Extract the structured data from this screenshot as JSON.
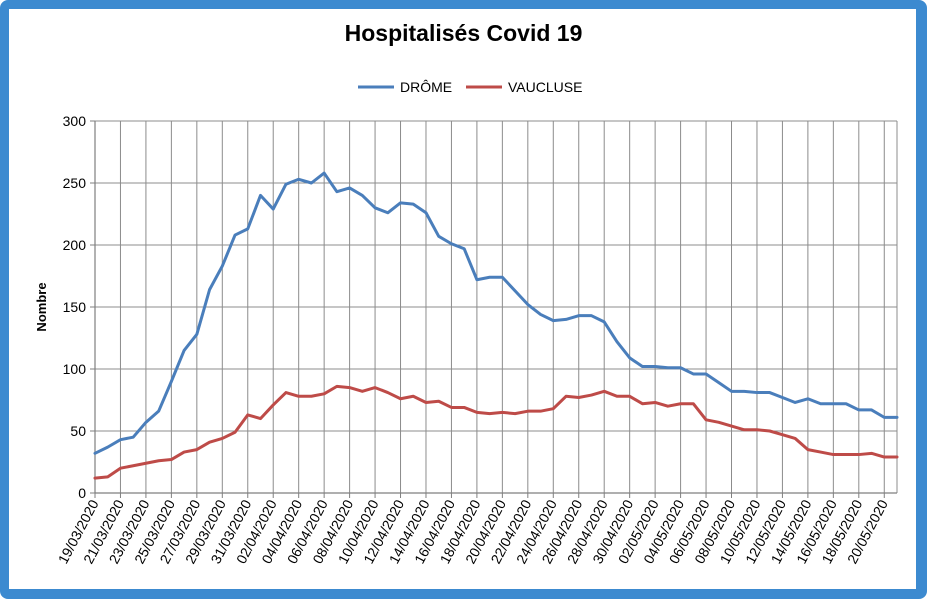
{
  "chart_data": {
    "type": "line",
    "title": "Hospitalisés Covid 19",
    "xlabel": "",
    "ylabel": "Nombre",
    "ylim": [
      0,
      300
    ],
    "yticks": [
      0,
      50,
      100,
      150,
      200,
      250,
      300
    ],
    "grid": true,
    "legend_position": "top",
    "x": [
      "19/03/2020",
      "20/03/2020",
      "21/03/2020",
      "22/03/2020",
      "23/03/2020",
      "24/03/2020",
      "25/03/2020",
      "26/03/2020",
      "27/03/2020",
      "28/03/2020",
      "29/03/2020",
      "30/03/2020",
      "31/03/2020",
      "01/04/2020",
      "02/04/2020",
      "03/04/2020",
      "04/04/2020",
      "05/04/2020",
      "06/04/2020",
      "07/04/2020",
      "08/04/2020",
      "09/04/2020",
      "10/04/2020",
      "11/04/2020",
      "12/04/2020",
      "13/04/2020",
      "14/04/2020",
      "15/04/2020",
      "16/04/2020",
      "17/04/2020",
      "18/04/2020",
      "19/04/2020",
      "20/04/2020",
      "21/04/2020",
      "22/04/2020",
      "23/04/2020",
      "24/04/2020",
      "25/04/2020",
      "26/04/2020",
      "27/04/2020",
      "28/04/2020",
      "29/04/2020",
      "30/04/2020",
      "01/05/2020",
      "02/05/2020",
      "03/05/2020",
      "04/05/2020",
      "05/05/2020",
      "06/05/2020",
      "07/05/2020",
      "08/05/2020",
      "09/05/2020",
      "10/05/2020",
      "11/05/2020",
      "12/05/2020",
      "13/05/2020",
      "14/05/2020",
      "15/05/2020",
      "16/05/2020",
      "17/05/2020",
      "18/05/2020",
      "19/05/2020",
      "20/05/2020",
      "21/05/2020"
    ],
    "xtick_labels": [
      "19/03/2020",
      "21/03/2020",
      "23/03/2020",
      "25/03/2020",
      "27/03/2020",
      "29/03/2020",
      "31/03/2020",
      "02/04/2020",
      "04/04/2020",
      "06/04/2020",
      "08/04/2020",
      "10/04/2020",
      "12/04/2020",
      "14/04/2020",
      "16/04/2020",
      "18/04/2020",
      "20/04/2020",
      "22/04/2020",
      "24/04/2020",
      "26/04/2020",
      "28/04/2020",
      "30/04/2020",
      "02/05/2020",
      "04/05/2020",
      "06/05/2020",
      "08/05/2020",
      "10/05/2020",
      "12/05/2020",
      "14/05/2020",
      "16/05/2020",
      "18/05/2020",
      "20/05/2020"
    ],
    "series": [
      {
        "name": "DRÔME",
        "color": "#4a7ebb",
        "values": [
          32,
          37,
          43,
          45,
          57,
          66,
          90,
          115,
          128,
          164,
          183,
          208,
          213,
          240,
          229,
          249,
          253,
          250,
          258,
          243,
          246,
          240,
          230,
          226,
          234,
          233,
          226,
          207,
          201,
          197,
          172,
          174,
          174,
          163,
          152,
          144,
          139,
          140,
          143,
          143,
          138,
          122,
          109,
          102,
          102,
          101,
          101,
          96,
          96,
          89,
          82,
          82,
          81,
          81,
          77,
          73,
          76,
          72,
          72,
          72,
          67,
          67,
          61,
          61
        ]
      },
      {
        "name": "VAUCLUSE",
        "color": "#be4b48",
        "values": [
          12,
          13,
          20,
          22,
          24,
          26,
          27,
          33,
          35,
          41,
          44,
          49,
          63,
          60,
          71,
          81,
          78,
          78,
          80,
          86,
          85,
          82,
          85,
          81,
          76,
          78,
          73,
          74,
          69,
          69,
          65,
          64,
          65,
          64,
          66,
          66,
          68,
          78,
          77,
          79,
          82,
          78,
          78,
          72,
          73,
          70,
          72,
          72,
          59,
          57,
          54,
          51,
          51,
          50,
          47,
          44,
          35,
          33,
          31,
          31,
          31,
          32,
          29,
          29
        ]
      }
    ]
  }
}
